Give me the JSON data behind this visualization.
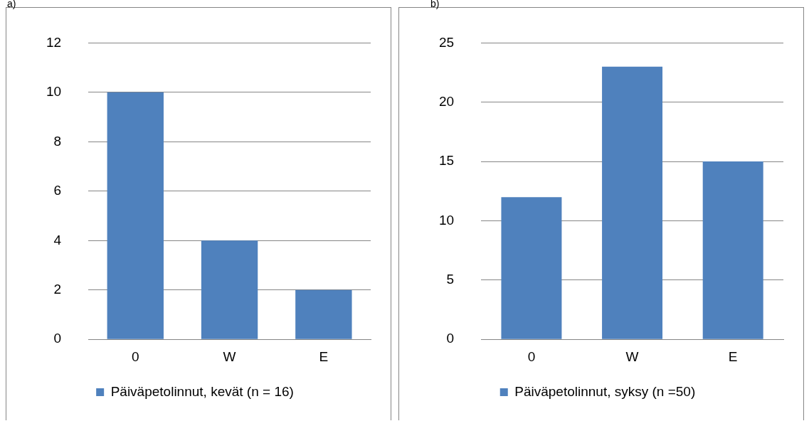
{
  "chart_data": [
    {
      "type": "bar",
      "title": "a)",
      "categories": [
        "0",
        "W",
        "E"
      ],
      "series": [
        {
          "name": "Päiväpetolinnut, kevät (n = 16)",
          "color": "#4f81bd",
          "values": [
            10,
            4,
            2
          ]
        }
      ],
      "ylim": [
        0,
        12
      ],
      "yticks": [
        0,
        2,
        4,
        6,
        8,
        10,
        12
      ],
      "grid": "y",
      "legend": "bottom"
    },
    {
      "type": "bar",
      "title": "b)",
      "categories": [
        "0",
        "W",
        "E"
      ],
      "series": [
        {
          "name": "Päiväpetolinnut, syksy (n =50)",
          "color": "#4f81bd",
          "values": [
            12,
            23,
            15
          ]
        }
      ],
      "ylim": [
        0,
        25
      ],
      "yticks": [
        0,
        5,
        10,
        15,
        20,
        25
      ],
      "grid": "y",
      "legend": "bottom"
    }
  ]
}
